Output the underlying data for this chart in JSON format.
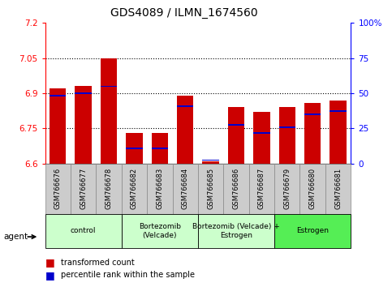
{
  "title": "GDS4089 / ILMN_1674560",
  "samples": [
    "GSM766676",
    "GSM766677",
    "GSM766678",
    "GSM766682",
    "GSM766683",
    "GSM766684",
    "GSM766685",
    "GSM766686",
    "GSM766687",
    "GSM766679",
    "GSM766680",
    "GSM766681"
  ],
  "red_values": [
    6.92,
    6.93,
    7.05,
    6.73,
    6.73,
    6.89,
    6.61,
    6.84,
    6.82,
    6.84,
    6.86,
    6.87
  ],
  "blue_values": [
    6.89,
    6.9,
    6.93,
    6.665,
    6.665,
    6.845,
    6.615,
    6.765,
    6.73,
    6.755,
    6.81,
    6.825
  ],
  "ylim_left": [
    6.6,
    7.2
  ],
  "yticks_left": [
    6.6,
    6.75,
    6.9,
    7.05,
    7.2
  ],
  "yticks_right": [
    0,
    25,
    50,
    75,
    100
  ],
  "ylim_right": [
    0,
    100
  ],
  "bar_color": "#cc0000",
  "blue_color": "#0000cc",
  "bar_width": 0.65,
  "groups": [
    {
      "label": "control",
      "start": 0,
      "end": 3,
      "color": "#ccffcc"
    },
    {
      "label": "Bortezomib\n(Velcade)",
      "start": 3,
      "end": 6,
      "color": "#ccffcc"
    },
    {
      "label": "Bortezomib (Velcade) +\nEstrogen",
      "start": 6,
      "end": 9,
      "color": "#ccffcc"
    },
    {
      "label": "Estrogen",
      "start": 9,
      "end": 12,
      "color": "#55ee55"
    }
  ],
  "agent_label": "agent",
  "legend1": "transformed count",
  "legend2": "percentile rank within the sample",
  "blue_bar_height": 0.006,
  "title_fontsize": 10
}
